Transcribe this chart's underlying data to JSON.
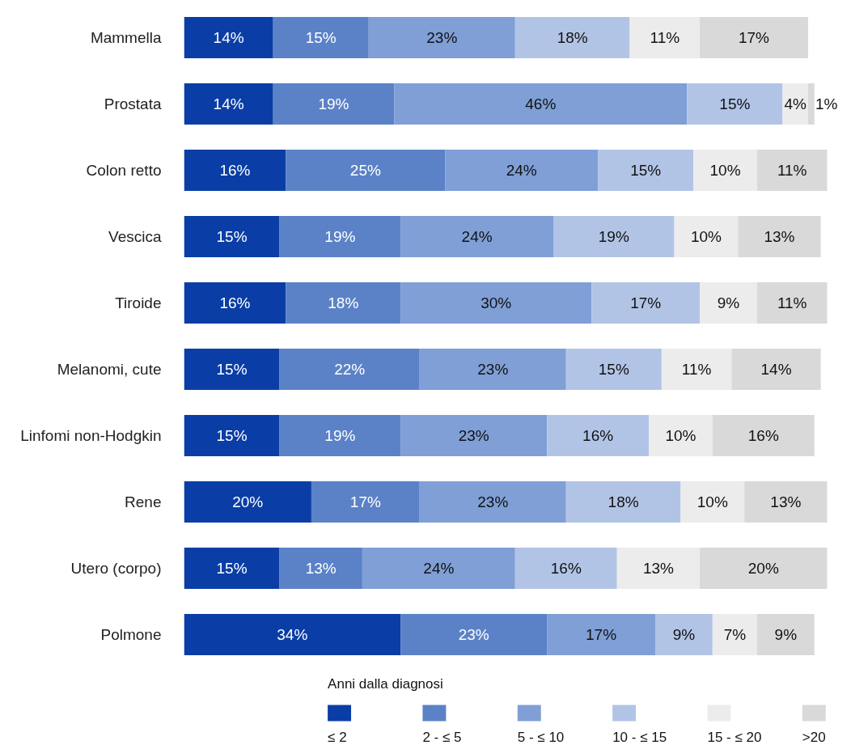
{
  "chart_data": {
    "type": "bar",
    "orientation": "horizontal",
    "stacked": true,
    "data_labels": true,
    "grid": false,
    "legend": "bottom",
    "tick_labels": "y",
    "legend_title": "Anni dalla diagnosi",
    "categories": [
      "Mammella",
      "Prostata",
      "Colon retto",
      "Vescica",
      "Tiroide",
      "Melanomi, cute",
      "Linfomi non-Hodgkin",
      "Rene",
      "Utero (corpo)",
      "Polmone"
    ],
    "series": [
      {
        "name": "≤ 2",
        "color": "#0a3ea6",
        "values": [
          14,
          14,
          16,
          15,
          16,
          15,
          15,
          20,
          15,
          34
        ],
        "value_labels": [
          "14%",
          "14%",
          "16%",
          "15%",
          "16%",
          "15%",
          "15%",
          "20%",
          "15%",
          "34%"
        ]
      },
      {
        "name": "2 - ≤ 5",
        "color": "#5b82c7",
        "values": [
          15,
          19,
          25,
          19,
          18,
          22,
          19,
          17,
          13,
          23
        ],
        "value_labels": [
          "15%",
          "19%",
          "25%",
          "19%",
          "18%",
          "22%",
          "19%",
          "17%",
          "13%",
          "23%"
        ]
      },
      {
        "name": "5 - ≤ 10",
        "color": "#7f9fd6",
        "values": [
          23,
          46,
          24,
          24,
          30,
          23,
          23,
          23,
          24,
          17
        ],
        "value_labels": [
          "23%",
          "46%",
          "24%",
          "24%",
          "30%",
          "23%",
          "23%",
          "23%",
          "24%",
          "17%"
        ]
      },
      {
        "name": "10 - ≤ 15",
        "color": "#b2c4e6",
        "values": [
          18,
          15,
          15,
          19,
          17,
          15,
          16,
          18,
          16,
          9
        ],
        "value_labels": [
          "18%",
          "15%",
          "15%",
          "19%",
          "17%",
          "15%",
          "16%",
          "18%",
          "16%",
          "9%"
        ]
      },
      {
        "name": "15 - ≤ 20",
        "color": "#ececec",
        "values": [
          11,
          4,
          10,
          10,
          9,
          11,
          10,
          10,
          13,
          7
        ],
        "value_labels": [
          "11%",
          "4%",
          "10%",
          "10%",
          "9%",
          "11%",
          "10%",
          "10%",
          "13%",
          "7%"
        ]
      },
      {
        "name": ">20",
        "color": "#d9d9d9",
        "values": [
          17,
          1,
          11,
          13,
          11,
          14,
          16,
          13,
          20,
          9
        ],
        "value_labels": [
          "17%",
          "1%",
          "11%",
          "13%",
          "11%",
          "14%",
          "16%",
          "13%",
          "20%",
          "9%"
        ]
      }
    ]
  }
}
